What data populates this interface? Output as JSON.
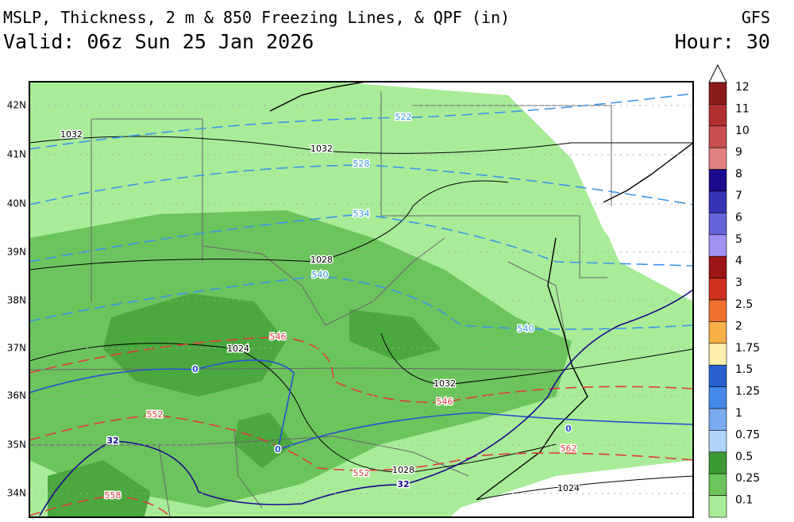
{
  "header": {
    "title": "MSLP, Thickness, 2 m & 850 Freezing Lines, & QPF (in)",
    "model": "GFS",
    "valid": "Valid: 06z Sun 25 Jan 2026",
    "hour": "Hour: 30"
  },
  "latitude_labels": [
    "42N",
    "41N",
    "40N",
    "39N",
    "38N",
    "37N",
    "36N",
    "35N",
    "34N"
  ],
  "isobar_labels": [
    "1032",
    "1032",
    "1028",
    "1024",
    "1032",
    "1028",
    "1024"
  ],
  "thickness_labels": [
    "522",
    "528",
    "534",
    "540",
    "540",
    "546",
    "546",
    "552",
    "552",
    "558",
    "562"
  ],
  "freezing_labels": [
    "0",
    "0",
    "0",
    "32",
    "32"
  ],
  "colorbar": [
    {
      "label": "12",
      "color": "#8b1a1a"
    },
    {
      "label": "11",
      "color": "#b03030"
    },
    {
      "label": "10",
      "color": "#c85050"
    },
    {
      "label": "9",
      "color": "#e08080"
    },
    {
      "label": "8",
      "color": "#1a0a8c"
    },
    {
      "label": "7",
      "color": "#3434b4"
    },
    {
      "label": "6",
      "color": "#6464d8"
    },
    {
      "label": "5",
      "color": "#a090f0"
    },
    {
      "label": "4",
      "color": "#9c1414"
    },
    {
      "label": "3",
      "color": "#d03020"
    },
    {
      "label": "2.5",
      "color": "#f07030"
    },
    {
      "label": "2",
      "color": "#f8b048"
    },
    {
      "label": "1.75",
      "color": "#fff0b0"
    },
    {
      "label": "1.5",
      "color": "#2860d0"
    },
    {
      "label": "1.25",
      "color": "#4488e8"
    },
    {
      "label": "1",
      "color": "#78aaf0"
    },
    {
      "label": "0.75",
      "color": "#b0d4f8"
    },
    {
      "label": "0.5",
      "color": "#3c9a34"
    },
    {
      "label": "0.25",
      "color": "#6cc45c"
    },
    {
      "label": "0.1",
      "color": "#a8ec98"
    }
  ]
}
